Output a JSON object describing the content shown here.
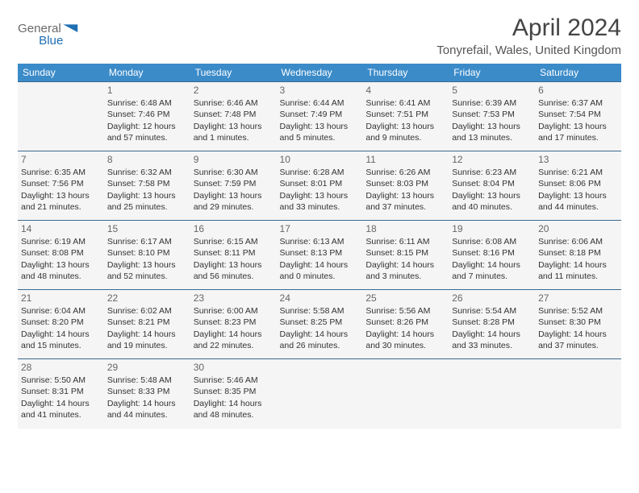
{
  "brand": {
    "name_part1": "General",
    "name_part2": "Blue",
    "text_color": "#6a6a6a",
    "accent_color": "#1f6fb2",
    "logo_fill": "#1f6fb2"
  },
  "header": {
    "month_title": "April 2024",
    "location": "Tonyrefail, Wales, United Kingdom"
  },
  "calendar": {
    "header_bg": "#3b8bc9",
    "header_fg": "#ffffff",
    "cell_bg": "#f5f5f5",
    "border_color": "#3b6a8f",
    "days_of_week": [
      "Sunday",
      "Monday",
      "Tuesday",
      "Wednesday",
      "Thursday",
      "Friday",
      "Saturday"
    ],
    "weeks": [
      [
        {
          "day": "",
          "text": ""
        },
        {
          "day": "1",
          "text": "Sunrise: 6:48 AM\nSunset: 7:46 PM\nDaylight: 12 hours and 57 minutes."
        },
        {
          "day": "2",
          "text": "Sunrise: 6:46 AM\nSunset: 7:48 PM\nDaylight: 13 hours and 1 minutes."
        },
        {
          "day": "3",
          "text": "Sunrise: 6:44 AM\nSunset: 7:49 PM\nDaylight: 13 hours and 5 minutes."
        },
        {
          "day": "4",
          "text": "Sunrise: 6:41 AM\nSunset: 7:51 PM\nDaylight: 13 hours and 9 minutes."
        },
        {
          "day": "5",
          "text": "Sunrise: 6:39 AM\nSunset: 7:53 PM\nDaylight: 13 hours and 13 minutes."
        },
        {
          "day": "6",
          "text": "Sunrise: 6:37 AM\nSunset: 7:54 PM\nDaylight: 13 hours and 17 minutes."
        }
      ],
      [
        {
          "day": "7",
          "text": "Sunrise: 6:35 AM\nSunset: 7:56 PM\nDaylight: 13 hours and 21 minutes."
        },
        {
          "day": "8",
          "text": "Sunrise: 6:32 AM\nSunset: 7:58 PM\nDaylight: 13 hours and 25 minutes."
        },
        {
          "day": "9",
          "text": "Sunrise: 6:30 AM\nSunset: 7:59 PM\nDaylight: 13 hours and 29 minutes."
        },
        {
          "day": "10",
          "text": "Sunrise: 6:28 AM\nSunset: 8:01 PM\nDaylight: 13 hours and 33 minutes."
        },
        {
          "day": "11",
          "text": "Sunrise: 6:26 AM\nSunset: 8:03 PM\nDaylight: 13 hours and 37 minutes."
        },
        {
          "day": "12",
          "text": "Sunrise: 6:23 AM\nSunset: 8:04 PM\nDaylight: 13 hours and 40 minutes."
        },
        {
          "day": "13",
          "text": "Sunrise: 6:21 AM\nSunset: 8:06 PM\nDaylight: 13 hours and 44 minutes."
        }
      ],
      [
        {
          "day": "14",
          "text": "Sunrise: 6:19 AM\nSunset: 8:08 PM\nDaylight: 13 hours and 48 minutes."
        },
        {
          "day": "15",
          "text": "Sunrise: 6:17 AM\nSunset: 8:10 PM\nDaylight: 13 hours and 52 minutes."
        },
        {
          "day": "16",
          "text": "Sunrise: 6:15 AM\nSunset: 8:11 PM\nDaylight: 13 hours and 56 minutes."
        },
        {
          "day": "17",
          "text": "Sunrise: 6:13 AM\nSunset: 8:13 PM\nDaylight: 14 hours and 0 minutes."
        },
        {
          "day": "18",
          "text": "Sunrise: 6:11 AM\nSunset: 8:15 PM\nDaylight: 14 hours and 3 minutes."
        },
        {
          "day": "19",
          "text": "Sunrise: 6:08 AM\nSunset: 8:16 PM\nDaylight: 14 hours and 7 minutes."
        },
        {
          "day": "20",
          "text": "Sunrise: 6:06 AM\nSunset: 8:18 PM\nDaylight: 14 hours and 11 minutes."
        }
      ],
      [
        {
          "day": "21",
          "text": "Sunrise: 6:04 AM\nSunset: 8:20 PM\nDaylight: 14 hours and 15 minutes."
        },
        {
          "day": "22",
          "text": "Sunrise: 6:02 AM\nSunset: 8:21 PM\nDaylight: 14 hours and 19 minutes."
        },
        {
          "day": "23",
          "text": "Sunrise: 6:00 AM\nSunset: 8:23 PM\nDaylight: 14 hours and 22 minutes."
        },
        {
          "day": "24",
          "text": "Sunrise: 5:58 AM\nSunset: 8:25 PM\nDaylight: 14 hours and 26 minutes."
        },
        {
          "day": "25",
          "text": "Sunrise: 5:56 AM\nSunset: 8:26 PM\nDaylight: 14 hours and 30 minutes."
        },
        {
          "day": "26",
          "text": "Sunrise: 5:54 AM\nSunset: 8:28 PM\nDaylight: 14 hours and 33 minutes."
        },
        {
          "day": "27",
          "text": "Sunrise: 5:52 AM\nSunset: 8:30 PM\nDaylight: 14 hours and 37 minutes."
        }
      ],
      [
        {
          "day": "28",
          "text": "Sunrise: 5:50 AM\nSunset: 8:31 PM\nDaylight: 14 hours and 41 minutes."
        },
        {
          "day": "29",
          "text": "Sunrise: 5:48 AM\nSunset: 8:33 PM\nDaylight: 14 hours and 44 minutes."
        },
        {
          "day": "30",
          "text": "Sunrise: 5:46 AM\nSunset: 8:35 PM\nDaylight: 14 hours and 48 minutes."
        },
        {
          "day": "",
          "text": ""
        },
        {
          "day": "",
          "text": ""
        },
        {
          "day": "",
          "text": ""
        },
        {
          "day": "",
          "text": ""
        }
      ]
    ]
  }
}
